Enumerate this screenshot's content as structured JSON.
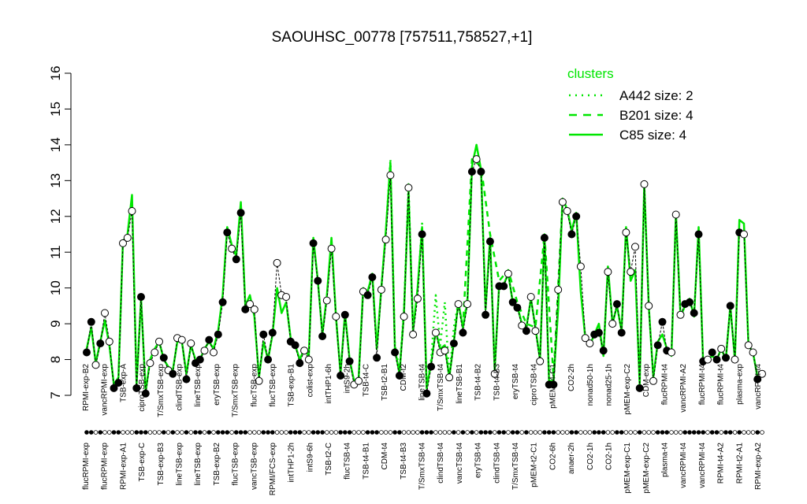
{
  "chart_data": {
    "type": "line",
    "title": "SAOUHSC_00778 [757511,758527,+1]",
    "xlabel": "",
    "ylabel": "",
    "ylim": [
      7,
      16
    ],
    "yticks": [
      7,
      8,
      9,
      10,
      11,
      12,
      13,
      14,
      15,
      16
    ],
    "grid": false,
    "legend": {
      "title": "clusters",
      "placement": "top-right",
      "entries": [
        {
          "label": "A442 size: 2",
          "style": "dotted"
        },
        {
          "label": "B201 size: 4",
          "style": "dashed"
        },
        {
          "label": "C85 size: 4",
          "style": "solid"
        }
      ]
    },
    "colors": {
      "cluster_line": "#00e600",
      "data_line": "#000000",
      "open_point": "#ffffff",
      "filled_point": "#000000"
    },
    "labels_lower": [
      "flucRPMI-exp",
      "flucRPMI-exp",
      "RPMI-exp-A1",
      "TSB-exp-C",
      "TSB-exp-B3",
      "lineTSB-exp",
      "lineTSB-exp",
      "TSB-exp-B2",
      "flucTSB-exp",
      "vancTSB-exp",
      "RPMI/FCS-exp",
      "intTHP1-2h",
      "intS9-6h",
      "TSB-t2-C",
      "flucTSB-t4",
      "TSB-t4-B1",
      "CDM-t4",
      "TSB-t4-B3",
      "T/SmxTSB-t4",
      "clindTSB-t4",
      "vancTSB-t4",
      "eryTSB-t4",
      "clindTSB-t4",
      "T/SmxTSB-t4",
      "pMEM-t2-C1",
      "CO2-6h",
      "anaer-2h",
      "CO2-1h",
      "CO2-1h",
      "pMEM-exp-C1",
      "pMEM-exp-C2",
      "plasma-t4",
      "vancRPMI-t4",
      "vancRPMI-t4",
      "RPMI-t4-A2",
      "RPMI-t2-A1",
      "RPMI-exp-A2"
    ],
    "labels_upper": [
      "RPMI-exp-B2",
      "vancRPMI-exp",
      "TSB-exp-A",
      "ciproTSB-exp",
      "T/SmxTSB-exp",
      "clindTSB-exp",
      "lineTSB-exp",
      "eryTSB-exp",
      "T/SmxTSB-exp",
      "flucTSB-exp",
      "flucTSB-exp",
      "TSB-exp-B1",
      "colist-exp",
      "intTHP1-6h",
      "intS9-2h",
      "TSB-t4-C",
      "TSB-t2-B1",
      "CDM-t2",
      "lineTSB-t4",
      "T/SmxTSB-t4",
      "lineTSB-B1",
      "TSB-t4-B2",
      "TSB-t4-B3",
      "eryTSB-t4",
      "ciproTSB-t4",
      "pMEM-t4-C1",
      "CO2-2h",
      "nonad50-1h",
      "nonad25-1h",
      "pMEM-exp-C2",
      "CDM-exp",
      "flucRPMI-t4",
      "vancRPMI-A2",
      "flucRPMI-t4",
      "flucRPMI-t4",
      "plasma-exp",
      "vancRPMI-t4"
    ],
    "points": [
      {
        "x": 1,
        "y": 8.2,
        "filled": true
      },
      {
        "x": 2,
        "y": 9.05,
        "filled": true
      },
      {
        "x": 3,
        "y": 7.85,
        "filled": false
      },
      {
        "x": 4,
        "y": 8.45,
        "filled": true
      },
      {
        "x": 5,
        "y": 9.3,
        "filled": false
      },
      {
        "x": 6,
        "y": 8.5,
        "filled": false
      },
      {
        "x": 7,
        "y": 7.2,
        "filled": true
      },
      {
        "x": 8,
        "y": 7.35,
        "filled": true
      },
      {
        "x": 9,
        "y": 11.25,
        "filled": false
      },
      {
        "x": 10,
        "y": 11.4,
        "filled": false
      },
      {
        "x": 11,
        "y": 12.15,
        "filled": false
      },
      {
        "x": 12,
        "y": 7.2,
        "filled": true
      },
      {
        "x": 13,
        "y": 9.75,
        "filled": true
      },
      {
        "x": 14,
        "y": 7.05,
        "filled": true
      },
      {
        "x": 15,
        "y": 7.9,
        "filled": false
      },
      {
        "x": 16,
        "y": 8.2,
        "filled": false
      },
      {
        "x": 17,
        "y": 8.5,
        "filled": false
      },
      {
        "x": 18,
        "y": 8.05,
        "filled": true
      },
      {
        "x": 19,
        "y": 7.7,
        "filled": false
      },
      {
        "x": 20,
        "y": 7.6,
        "filled": true
      },
      {
        "x": 21,
        "y": 8.6,
        "filled": false
      },
      {
        "x": 22,
        "y": 8.55,
        "filled": false
      },
      {
        "x": 23,
        "y": 7.45,
        "filled": true
      },
      {
        "x": 24,
        "y": 8.45,
        "filled": false
      },
      {
        "x": 25,
        "y": 7.9,
        "filled": true
      },
      {
        "x": 26,
        "y": 8.0,
        "filled": true
      },
      {
        "x": 27,
        "y": 8.25,
        "filled": false
      },
      {
        "x": 28,
        "y": 8.55,
        "filled": true
      },
      {
        "x": 29,
        "y": 8.2,
        "filled": false
      },
      {
        "x": 30,
        "y": 8.7,
        "filled": true
      },
      {
        "x": 31,
        "y": 9.6,
        "filled": true
      },
      {
        "x": 32,
        "y": 11.55,
        "filled": true
      },
      {
        "x": 33,
        "y": 11.1,
        "filled": false
      },
      {
        "x": 34,
        "y": 10.8,
        "filled": true
      },
      {
        "x": 35,
        "y": 12.1,
        "filled": true
      },
      {
        "x": 36,
        "y": 9.4,
        "filled": true
      },
      {
        "x": 37,
        "y": 9.55,
        "filled": false
      },
      {
        "x": 38,
        "y": 9.4,
        "filled": false
      },
      {
        "x": 39,
        "y": 7.4,
        "filled": false
      },
      {
        "x": 40,
        "y": 8.7,
        "filled": true
      },
      {
        "x": 41,
        "y": 8.0,
        "filled": true
      },
      {
        "x": 42,
        "y": 8.75,
        "filled": true
      },
      {
        "x": 43,
        "y": 10.7,
        "filled": false
      },
      {
        "x": 44,
        "y": 9.8,
        "filled": false
      },
      {
        "x": 45,
        "y": 9.75,
        "filled": false
      },
      {
        "x": 46,
        "y": 8.5,
        "filled": true
      },
      {
        "x": 47,
        "y": 8.4,
        "filled": true
      },
      {
        "x": 48,
        "y": 7.9,
        "filled": true
      },
      {
        "x": 49,
        "y": 8.25,
        "filled": false
      },
      {
        "x": 50,
        "y": 8.0,
        "filled": false
      },
      {
        "x": 51,
        "y": 11.25,
        "filled": true
      },
      {
        "x": 52,
        "y": 10.2,
        "filled": true
      },
      {
        "x": 53,
        "y": 8.65,
        "filled": true
      },
      {
        "x": 54,
        "y": 9.65,
        "filled": false
      },
      {
        "x": 55,
        "y": 11.1,
        "filled": false
      },
      {
        "x": 56,
        "y": 9.2,
        "filled": false
      },
      {
        "x": 57,
        "y": 7.55,
        "filled": true
      },
      {
        "x": 58,
        "y": 9.25,
        "filled": true
      },
      {
        "x": 59,
        "y": 7.95,
        "filled": true
      },
      {
        "x": 60,
        "y": 7.3,
        "filled": false
      },
      {
        "x": 61,
        "y": 7.4,
        "filled": false
      },
      {
        "x": 62,
        "y": 9.9,
        "filled": false
      },
      {
        "x": 63,
        "y": 9.8,
        "filled": true
      },
      {
        "x": 64,
        "y": 10.3,
        "filled": true
      },
      {
        "x": 65,
        "y": 8.05,
        "filled": true
      },
      {
        "x": 66,
        "y": 9.95,
        "filled": false
      },
      {
        "x": 67,
        "y": 11.35,
        "filled": false
      },
      {
        "x": 68,
        "y": 13.15,
        "filled": false
      },
      {
        "x": 69,
        "y": 8.2,
        "filled": true
      },
      {
        "x": 70,
        "y": 7.55,
        "filled": true
      },
      {
        "x": 71,
        "y": 9.2,
        "filled": false
      },
      {
        "x": 72,
        "y": 12.8,
        "filled": false
      },
      {
        "x": 73,
        "y": 8.7,
        "filled": false
      },
      {
        "x": 74,
        "y": 9.7,
        "filled": false
      },
      {
        "x": 75,
        "y": 11.5,
        "filled": true
      },
      {
        "x": 76,
        "y": 7.05,
        "filled": true
      },
      {
        "x": 77,
        "y": 7.8,
        "filled": true
      },
      {
        "x": 78,
        "y": 8.75,
        "filled": false
      },
      {
        "x": 79,
        "y": 8.2,
        "filled": false
      },
      {
        "x": 80,
        "y": 8.25,
        "filled": false
      },
      {
        "x": 81,
        "y": 7.5,
        "filled": false
      },
      {
        "x": 82,
        "y": 8.45,
        "filled": true
      },
      {
        "x": 83,
        "y": 9.55,
        "filled": false
      },
      {
        "x": 84,
        "y": 8.75,
        "filled": true
      },
      {
        "x": 85,
        "y": 9.55,
        "filled": false
      },
      {
        "x": 86,
        "y": 13.25,
        "filled": true
      },
      {
        "x": 87,
        "y": 13.6,
        "filled": false
      },
      {
        "x": 88,
        "y": 13.25,
        "filled": true
      },
      {
        "x": 89,
        "y": 9.25,
        "filled": true
      },
      {
        "x": 90,
        "y": 11.3,
        "filled": true
      },
      {
        "x": 91,
        "y": 7.6,
        "filled": false
      },
      {
        "x": 92,
        "y": 10.05,
        "filled": true
      },
      {
        "x": 93,
        "y": 10.05,
        "filled": true
      },
      {
        "x": 94,
        "y": 10.4,
        "filled": false
      },
      {
        "x": 95,
        "y": 9.6,
        "filled": true
      },
      {
        "x": 96,
        "y": 9.45,
        "filled": true
      },
      {
        "x": 97,
        "y": 8.95,
        "filled": false
      },
      {
        "x": 98,
        "y": 8.8,
        "filled": true
      },
      {
        "x": 99,
        "y": 9.75,
        "filled": false
      },
      {
        "x": 100,
        "y": 8.8,
        "filled": false
      },
      {
        "x": 101,
        "y": 7.95,
        "filled": false
      },
      {
        "x": 102,
        "y": 11.4,
        "filled": true
      },
      {
        "x": 103,
        "y": 7.3,
        "filled": true
      },
      {
        "x": 104,
        "y": 7.3,
        "filled": true
      },
      {
        "x": 105,
        "y": 9.95,
        "filled": false
      },
      {
        "x": 106,
        "y": 12.4,
        "filled": false
      },
      {
        "x": 107,
        "y": 12.15,
        "filled": false
      },
      {
        "x": 108,
        "y": 11.5,
        "filled": true
      },
      {
        "x": 109,
        "y": 12.0,
        "filled": true
      },
      {
        "x": 110,
        "y": 10.6,
        "filled": false
      },
      {
        "x": 111,
        "y": 8.6,
        "filled": false
      },
      {
        "x": 112,
        "y": 8.45,
        "filled": false
      },
      {
        "x": 113,
        "y": 8.7,
        "filled": true
      },
      {
        "x": 114,
        "y": 8.75,
        "filled": true
      },
      {
        "x": 115,
        "y": 8.25,
        "filled": true
      },
      {
        "x": 116,
        "y": 10.45,
        "filled": false
      },
      {
        "x": 117,
        "y": 9.0,
        "filled": false
      },
      {
        "x": 118,
        "y": 9.55,
        "filled": true
      },
      {
        "x": 119,
        "y": 8.75,
        "filled": true
      },
      {
        "x": 120,
        "y": 11.55,
        "filled": false
      },
      {
        "x": 121,
        "y": 10.45,
        "filled": false
      },
      {
        "x": 122,
        "y": 11.15,
        "filled": false
      },
      {
        "x": 123,
        "y": 7.2,
        "filled": true
      },
      {
        "x": 124,
        "y": 12.9,
        "filled": false
      },
      {
        "x": 125,
        "y": 9.5,
        "filled": false
      },
      {
        "x": 126,
        "y": 7.4,
        "filled": false
      },
      {
        "x": 127,
        "y": 8.4,
        "filled": true
      },
      {
        "x": 128,
        "y": 9.05,
        "filled": true
      },
      {
        "x": 129,
        "y": 8.25,
        "filled": true
      },
      {
        "x": 130,
        "y": 8.2,
        "filled": false
      },
      {
        "x": 131,
        "y": 12.05,
        "filled": false
      },
      {
        "x": 132,
        "y": 9.25,
        "filled": false
      },
      {
        "x": 133,
        "y": 9.55,
        "filled": true
      },
      {
        "x": 134,
        "y": 9.6,
        "filled": true
      },
      {
        "x": 135,
        "y": 9.3,
        "filled": true
      },
      {
        "x": 136,
        "y": 11.5,
        "filled": true
      },
      {
        "x": 137,
        "y": 7.95,
        "filled": true
      },
      {
        "x": 138,
        "y": 8.0,
        "filled": false
      },
      {
        "x": 139,
        "y": 8.2,
        "filled": true
      },
      {
        "x": 140,
        "y": 8.0,
        "filled": true
      },
      {
        "x": 141,
        "y": 8.3,
        "filled": false
      },
      {
        "x": 142,
        "y": 8.05,
        "filled": true
      },
      {
        "x": 143,
        "y": 9.5,
        "filled": true
      },
      {
        "x": 144,
        "y": 8.0,
        "filled": false
      },
      {
        "x": 145,
        "y": 11.55,
        "filled": true
      },
      {
        "x": 146,
        "y": 11.5,
        "filled": false
      },
      {
        "x": 147,
        "y": 8.4,
        "filled": false
      },
      {
        "x": 148,
        "y": 8.2,
        "filled": false
      },
      {
        "x": 149,
        "y": 7.45,
        "filled": true
      },
      {
        "x": 150,
        "y": 7.6,
        "filled": false
      }
    ],
    "series": [
      {
        "name": "A442 size: 2",
        "style": "dotted",
        "x": [
          60,
          61,
          62,
          63,
          64,
          65,
          66,
          67,
          68,
          69,
          70,
          71,
          72,
          73,
          74,
          75,
          76,
          77,
          78,
          79,
          80,
          81,
          82,
          83,
          84,
          85
        ],
        "values": [
          7.4,
          7.5,
          10.0,
          9.9,
          10.4,
          8.3,
          10.0,
          11.6,
          13.6,
          8.4,
          7.7,
          9.4,
          12.9,
          8.8,
          10.0,
          11.8,
          7.2,
          8.0,
          9.8,
          8.4,
          9.6,
          7.5,
          8.9,
          9.6,
          8.9,
          9.7
        ]
      },
      {
        "name": "B201 size: 4",
        "style": "dashed",
        "x": [
          84,
          86,
          88,
          90,
          92,
          94,
          96,
          98,
          100,
          102,
          104,
          106
        ],
        "values": [
          8.9,
          13.6,
          13.4,
          11.5,
          10.2,
          10.5,
          9.6,
          9.0,
          8.9,
          11.5,
          7.5,
          12.5
        ]
      },
      {
        "name": "C85 size: 4",
        "style": "solid",
        "x": [
          1,
          2,
          3,
          4,
          5,
          6,
          7,
          8,
          9,
          10,
          11,
          12,
          13,
          14,
          15,
          16,
          17,
          18,
          19,
          20,
          21,
          22,
          23,
          24,
          25,
          26,
          27,
          28,
          29,
          30,
          31,
          32,
          33,
          34,
          35,
          36,
          37,
          38,
          39,
          40,
          41,
          42,
          43,
          44,
          45,
          46,
          47,
          48,
          49,
          50,
          51,
          52,
          53,
          54,
          55,
          56,
          57,
          58,
          59,
          60,
          61,
          62,
          63,
          64,
          65,
          66,
          67,
          68,
          69,
          70,
          71,
          72,
          73,
          74,
          75,
          76,
          77,
          78,
          79,
          80,
          81,
          82,
          83,
          84,
          85,
          86,
          87,
          88,
          89,
          90,
          91,
          92,
          93,
          94,
          95,
          96,
          97,
          98,
          99,
          100,
          101,
          102,
          103,
          104,
          105,
          106,
          107,
          108,
          109,
          110,
          111,
          112,
          113,
          114,
          115,
          116,
          117,
          118,
          119,
          120,
          121,
          122,
          123,
          124,
          125,
          126,
          127,
          128,
          129,
          130,
          131,
          132,
          133,
          134,
          135,
          136,
          137,
          138,
          139,
          140,
          141,
          142,
          143,
          144,
          145,
          146,
          147,
          148,
          149,
          150
        ],
        "values": [
          8.3,
          8.9,
          7.9,
          8.5,
          9.1,
          8.4,
          7.3,
          7.5,
          11.3,
          11.5,
          12.6,
          7.3,
          9.7,
          7.1,
          8.0,
          8.3,
          8.5,
          8.0,
          7.8,
          7.7,
          8.5,
          8.5,
          7.6,
          8.4,
          8.0,
          8.0,
          8.3,
          8.5,
          8.3,
          8.8,
          9.8,
          11.7,
          11.2,
          10.9,
          12.4,
          9.5,
          9.8,
          9.2,
          7.5,
          8.5,
          8.0,
          8.7,
          10.0,
          9.3,
          9.6,
          8.6,
          8.4,
          8.0,
          8.3,
          8.1,
          11.4,
          10.2,
          8.7,
          9.8,
          11.4,
          9.2,
          7.6,
          9.3,
          8.0,
          7.4,
          7.5,
          10.0,
          9.9,
          10.4,
          8.3,
          10.0,
          11.6,
          13.5,
          8.3,
          7.6,
          9.3,
          12.7,
          8.8,
          10.0,
          11.7,
          7.2,
          7.9,
          8.8,
          8.3,
          8.4,
          7.5,
          8.5,
          9.6,
          8.9,
          9.6,
          13.4,
          14.0,
          13.3,
          9.4,
          11.4,
          7.7,
          10.1,
          10.1,
          10.4,
          9.6,
          9.5,
          9.0,
          8.9,
          9.7,
          8.9,
          8.0,
          11.5,
          7.4,
          7.4,
          9.4,
          12.5,
          12.2,
          11.6,
          12.1,
          9.9,
          8.6,
          8.4,
          8.7,
          9.0,
          8.1,
          10.6,
          9.0,
          9.5,
          8.8,
          11.7,
          10.2,
          10.5,
          7.3,
          12.9,
          9.5,
          7.5,
          8.5,
          8.7,
          8.3,
          8.1,
          12.1,
          9.2,
          9.5,
          9.7,
          9.2,
          11.7,
          7.9,
          8.0,
          8.1,
          8.0,
          8.3,
          8.0,
          9.5,
          8.0,
          11.9,
          11.8,
          8.4,
          8.2,
          7.5,
          7.6
        ]
      }
    ]
  }
}
